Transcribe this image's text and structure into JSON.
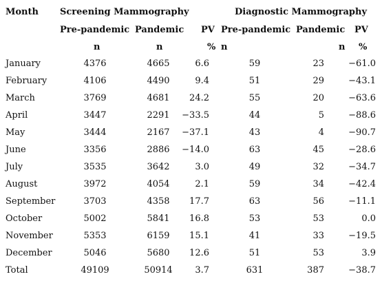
{
  "header": {
    "month": "Month",
    "screening_group": "Screening Mammography",
    "diagnostic_group": "Diagnostic Mammography",
    "cols": {
      "s_pre": "Pre-pandemic",
      "s_pan": "Pandemic",
      "s_pv": "PV",
      "d_pre": "Pre-pandemic",
      "d_pan": "Pandemic",
      "d_pv": "PV"
    },
    "units": {
      "s_pre": "n",
      "s_pan": "n",
      "s_pv": "%",
      "d_pre": "n",
      "d_pan": "n",
      "d_pv": "%"
    }
  },
  "rows": [
    {
      "month": "January",
      "s_pre": "4376",
      "s_pan": "4665",
      "s_pv": "6.6",
      "d_pre": "59",
      "d_pan": "23",
      "d_pv": "−61.0"
    },
    {
      "month": "February",
      "s_pre": "4106",
      "s_pan": "4490",
      "s_pv": "9.4",
      "d_pre": "51",
      "d_pan": "29",
      "d_pv": "−43.1"
    },
    {
      "month": "March",
      "s_pre": "3769",
      "s_pan": "4681",
      "s_pv": "24.2",
      "d_pre": "55",
      "d_pan": "20",
      "d_pv": "−63.6"
    },
    {
      "month": "April",
      "s_pre": "3447",
      "s_pan": "2291",
      "s_pv": "−33.5",
      "d_pre": "44",
      "d_pan": "5",
      "d_pv": "−88.6"
    },
    {
      "month": "May",
      "s_pre": "3444",
      "s_pan": "2167",
      "s_pv": "−37.1",
      "d_pre": "43",
      "d_pan": "4",
      "d_pv": "−90.7"
    },
    {
      "month": "June",
      "s_pre": "3356",
      "s_pan": "2886",
      "s_pv": "−14.0",
      "d_pre": "63",
      "d_pan": "45",
      "d_pv": "−28.6"
    },
    {
      "month": "July",
      "s_pre": "3535",
      "s_pan": "3642",
      "s_pv": "3.0",
      "d_pre": "49",
      "d_pan": "32",
      "d_pv": "−34.7"
    },
    {
      "month": "August",
      "s_pre": "3972",
      "s_pan": "4054",
      "s_pv": "2.1",
      "d_pre": "59",
      "d_pan": "34",
      "d_pv": "−42.4"
    },
    {
      "month": "September",
      "s_pre": "3703",
      "s_pan": "4358",
      "s_pv": "17.7",
      "d_pre": "63",
      "d_pan": "56",
      "d_pv": "−11.1"
    },
    {
      "month": "October",
      "s_pre": "5002",
      "s_pan": "5841",
      "s_pv": "16.8",
      "d_pre": "53",
      "d_pan": "53",
      "d_pv": "0.0"
    },
    {
      "month": "November",
      "s_pre": "5353",
      "s_pan": "6159",
      "s_pv": "15.1",
      "d_pre": "41",
      "d_pan": "33",
      "d_pv": "−19.5"
    },
    {
      "month": "December",
      "s_pre": "5046",
      "s_pan": "5680",
      "s_pv": "12.6",
      "d_pre": "51",
      "d_pan": "53",
      "d_pv": "3.9"
    },
    {
      "month": "Total",
      "s_pre": "49109",
      "s_pan": "50914",
      "s_pv": "3.7",
      "d_pre": "631",
      "d_pan": "387",
      "d_pv": "−38.7"
    }
  ]
}
